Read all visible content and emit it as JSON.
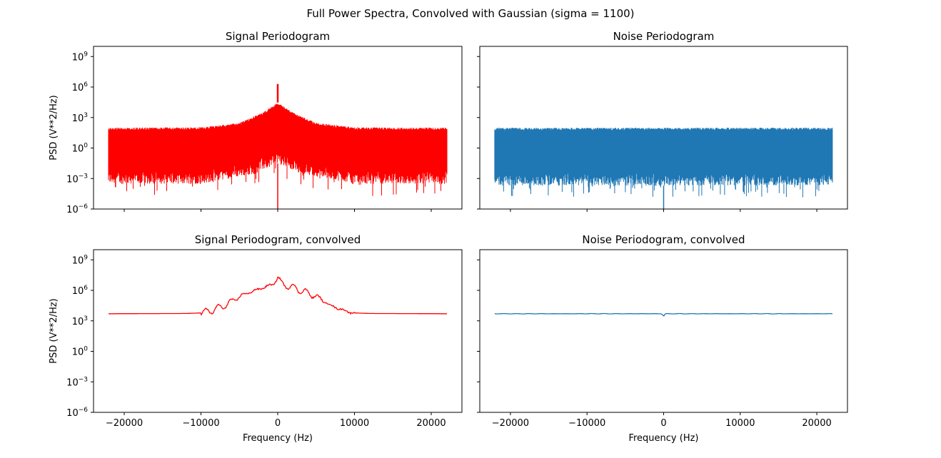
{
  "figure": {
    "suptitle": "Full Power Spectra, Convolved with Gaussian (sigma = 1100)"
  },
  "colors": {
    "signal": "#ff0000",
    "noise": "#1f77b4",
    "axes": "#000000"
  },
  "chart_data": [
    {
      "id": "signal-periodogram",
      "type": "line",
      "title": "Signal Periodogram",
      "xlabel": "",
      "ylabel": "PSD (V**2/Hz)",
      "yscale": "log",
      "xlim": [
        -24000,
        24000
      ],
      "ylim": [
        1e-06,
        10000000000.0
      ],
      "xticks": [
        -20000,
        -10000,
        0,
        10000,
        20000
      ],
      "xtick_labels_visible": false,
      "yticks": [
        {
          "value": 1e-06,
          "base": "10",
          "exp": "−6"
        },
        {
          "value": 0.001,
          "base": "10",
          "exp": "−3"
        },
        {
          "value": 1,
          "base": "10",
          "exp": "0"
        },
        {
          "value": 1000.0,
          "base": "10",
          "exp": "3"
        },
        {
          "value": 1000000.0,
          "base": "10",
          "exp": "6"
        },
        {
          "value": 1000000000.0,
          "base": "10",
          "exp": "9"
        }
      ],
      "ytick_labels_visible": true,
      "color": "signal",
      "series": [
        {
          "style": "dense-noise-band",
          "x_range": [
            -22050,
            22050
          ],
          "upper_envelope": {
            "x": [
              -22050,
              -10000,
              -5000,
              -2000,
              0,
              2000,
              5000,
              10000,
              22050
            ],
            "y": [
              100,
              110,
              300,
              3000,
              30000,
              3000,
              300,
              110,
              100
            ]
          },
          "lower_envelope": {
            "x": [
              -22050,
              -10000,
              -3000,
              0,
              3000,
              10000,
              22050
            ],
            "y": [
              0.0003,
              0.0003,
              0.003,
              0.03,
              0.003,
              0.0003,
              0.0003
            ]
          },
          "peak": {
            "x": 0,
            "y": 2000000
          },
          "dip": {
            "x": 0,
            "y": 1e-06
          }
        }
      ]
    },
    {
      "id": "noise-periodogram",
      "type": "line",
      "title": "Noise Periodogram",
      "xlabel": "",
      "ylabel": "",
      "yscale": "log",
      "xlim": [
        -24000,
        24000
      ],
      "ylim": [
        1e-06,
        10000000000.0
      ],
      "xticks": [
        -20000,
        -10000,
        0,
        10000,
        20000
      ],
      "xtick_labels_visible": false,
      "yticks": [
        {
          "value": 1e-06,
          "base": "10",
          "exp": "−6"
        },
        {
          "value": 0.001,
          "base": "10",
          "exp": "−3"
        },
        {
          "value": 1,
          "base": "10",
          "exp": "0"
        },
        {
          "value": 1000.0,
          "base": "10",
          "exp": "3"
        },
        {
          "value": 1000000.0,
          "base": "10",
          "exp": "6"
        },
        {
          "value": 1000000000.0,
          "base": "10",
          "exp": "9"
        }
      ],
      "ytick_labels_visible": false,
      "color": "noise",
      "series": [
        {
          "style": "dense-noise-band",
          "x_range": [
            -22050,
            22050
          ],
          "upper_envelope": {
            "x": [
              -22050,
              22050
            ],
            "y": [
              100,
              100
            ]
          },
          "lower_envelope": {
            "x": [
              -22050,
              22050
            ],
            "y": [
              0.0002,
              0.0002
            ]
          },
          "dip": {
            "x": 0,
            "y": 1e-06
          }
        }
      ]
    },
    {
      "id": "signal-periodogram-convolved",
      "type": "line",
      "title": "Signal Periodogram, convolved",
      "xlabel": "Frequency (Hz)",
      "ylabel": "PSD (V**2/Hz)",
      "yscale": "log",
      "xlim": [
        -24000,
        24000
      ],
      "ylim": [
        1e-06,
        10000000000.0
      ],
      "xticks": [
        -20000,
        -10000,
        0,
        10000,
        20000
      ],
      "xtick_labels": [
        "−20000",
        "−10000",
        "0",
        "10000",
        "20000"
      ],
      "xtick_labels_visible": true,
      "yticks": [
        {
          "value": 1e-06,
          "base": "10",
          "exp": "−6"
        },
        {
          "value": 0.001,
          "base": "10",
          "exp": "−3"
        },
        {
          "value": 1,
          "base": "10",
          "exp": "0"
        },
        {
          "value": 1000.0,
          "base": "10",
          "exp": "3"
        },
        {
          "value": 1000000.0,
          "base": "10",
          "exp": "6"
        },
        {
          "value": 1000000000.0,
          "base": "10",
          "exp": "9"
        }
      ],
      "ytick_labels_visible": true,
      "color": "signal",
      "series": [
        {
          "style": "wiggly-line",
          "x": [
            -22050,
            -12000,
            -10000,
            -9000,
            -8000,
            -7000,
            -6000,
            -5000,
            -4000,
            -3000,
            -2000,
            -1000,
            -500,
            0,
            500,
            1000,
            2000,
            3000,
            4000,
            5000,
            6000,
            7000,
            8000,
            9000,
            10000,
            12000,
            22050
          ],
          "y": [
            5000,
            5300,
            6000,
            9000,
            15000,
            30000,
            80000,
            250000,
            500000,
            1000000,
            1700000,
            3000000,
            5000000,
            20000000,
            5000000,
            3000000,
            2000000,
            1000000,
            500000,
            250000,
            90000,
            30000,
            15000,
            9000,
            6000,
            5300,
            5000
          ],
          "wiggle_amplitude_decades": 0.35,
          "wiggle_range": [
            -10000,
            10000
          ]
        }
      ]
    },
    {
      "id": "noise-periodogram-convolved",
      "type": "line",
      "title": "Noise Periodogram, convolved",
      "xlabel": "Frequency (Hz)",
      "ylabel": "",
      "yscale": "log",
      "xlim": [
        -24000,
        24000
      ],
      "ylim": [
        1e-06,
        10000000000.0
      ],
      "xticks": [
        -20000,
        -10000,
        0,
        10000,
        20000
      ],
      "xtick_labels": [
        "−20000",
        "−10000",
        "0",
        "10000",
        "20000"
      ],
      "xtick_labels_visible": true,
      "yticks": [
        {
          "value": 1e-06,
          "base": "10",
          "exp": "−6"
        },
        {
          "value": 0.001,
          "base": "10",
          "exp": "−3"
        },
        {
          "value": 1,
          "base": "10",
          "exp": "0"
        },
        {
          "value": 1000.0,
          "base": "10",
          "exp": "3"
        },
        {
          "value": 1000000.0,
          "base": "10",
          "exp": "6"
        },
        {
          "value": 1000000000.0,
          "base": "10",
          "exp": "9"
        }
      ],
      "ytick_labels_visible": false,
      "color": "noise",
      "series": [
        {
          "style": "wiggly-line",
          "x": [
            -22050,
            -300,
            -100,
            0,
            100,
            300,
            22050
          ],
          "y": [
            5000,
            5000,
            4000,
            2500,
            4000,
            5000,
            5000
          ],
          "wiggle_amplitude_decades": 0.02,
          "wiggle_range": [
            -22050,
            22050
          ]
        }
      ]
    }
  ]
}
